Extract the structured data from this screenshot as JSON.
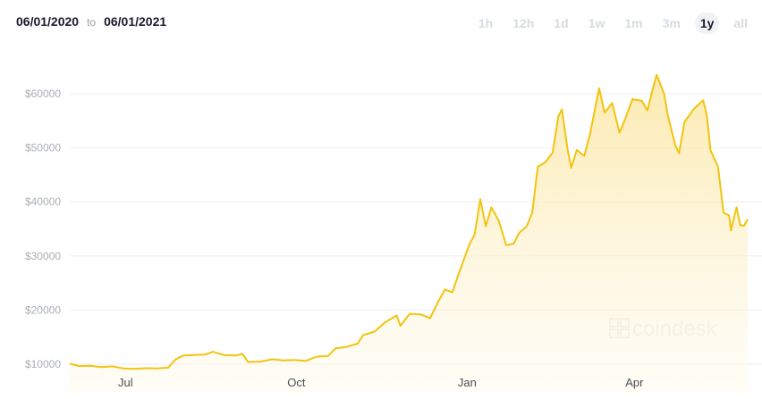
{
  "header": {
    "from_date": "06/01/2020",
    "separator": "to",
    "to_date": "06/01/2021"
  },
  "ranges": [
    {
      "label": "1h",
      "active": false
    },
    {
      "label": "12h",
      "active": false
    },
    {
      "label": "1d",
      "active": false
    },
    {
      "label": "1w",
      "active": false
    },
    {
      "label": "1m",
      "active": false
    },
    {
      "label": "3m",
      "active": false
    },
    {
      "label": "1y",
      "active": true
    },
    {
      "label": "all",
      "active": false
    }
  ],
  "watermark": "coindesk",
  "chart_data": {
    "type": "area",
    "title": "",
    "xlabel": "",
    "ylabel": "",
    "ylim": [
      10000,
      65000
    ],
    "yticks": [
      10000,
      20000,
      30000,
      40000,
      50000,
      60000
    ],
    "ytick_labels": [
      "$10000",
      "$20000",
      "$30000",
      "$40000",
      "$50000",
      "$60000"
    ],
    "xlim": [
      "2020-06-01",
      "2021-06-01"
    ],
    "xticks": [
      {
        "date": "2020-07-01",
        "label": "Jul"
      },
      {
        "date": "2020-10-01",
        "label": "Oct"
      },
      {
        "date": "2021-01-01",
        "label": "Jan"
      },
      {
        "date": "2021-04-01",
        "label": "Apr"
      }
    ],
    "grid": true,
    "colors": {
      "line": "#f2c40f",
      "fill": "#fbe9a6",
      "grid": "#eceef0"
    },
    "series": [
      {
        "points": [
          [
            "2020-06-01",
            10100
          ],
          [
            "2020-06-06",
            9650
          ],
          [
            "2020-06-12",
            9700
          ],
          [
            "2020-06-18",
            9450
          ],
          [
            "2020-06-24",
            9600
          ],
          [
            "2020-06-30",
            9200
          ],
          [
            "2020-07-06",
            9150
          ],
          [
            "2020-07-12",
            9250
          ],
          [
            "2020-07-18",
            9200
          ],
          [
            "2020-07-24",
            9350
          ],
          [
            "2020-07-28",
            10900
          ],
          [
            "2020-08-01",
            11600
          ],
          [
            "2020-08-07",
            11700
          ],
          [
            "2020-08-13",
            11800
          ],
          [
            "2020-08-17",
            12300
          ],
          [
            "2020-08-23",
            11700
          ],
          [
            "2020-08-29",
            11600
          ],
          [
            "2020-09-02",
            11900
          ],
          [
            "2020-09-05",
            10400
          ],
          [
            "2020-09-12",
            10500
          ],
          [
            "2020-09-18",
            10900
          ],
          [
            "2020-09-24",
            10700
          ],
          [
            "2020-09-30",
            10800
          ],
          [
            "2020-10-06",
            10600
          ],
          [
            "2020-10-12",
            11400
          ],
          [
            "2020-10-18",
            11500
          ],
          [
            "2020-10-22",
            12900
          ],
          [
            "2020-10-28",
            13200
          ],
          [
            "2020-11-03",
            13800
          ],
          [
            "2020-11-06",
            15400
          ],
          [
            "2020-11-12",
            16000
          ],
          [
            "2020-11-18",
            17800
          ],
          [
            "2020-11-24",
            19000
          ],
          [
            "2020-11-26",
            17100
          ],
          [
            "2020-12-01",
            19300
          ],
          [
            "2020-12-07",
            19200
          ],
          [
            "2020-12-12",
            18500
          ],
          [
            "2020-12-16",
            21300
          ],
          [
            "2020-12-20",
            23800
          ],
          [
            "2020-12-24",
            23300
          ],
          [
            "2020-12-27",
            26300
          ],
          [
            "2021-01-02",
            32000
          ],
          [
            "2021-01-05",
            34000
          ],
          [
            "2021-01-08",
            40500
          ],
          [
            "2021-01-11",
            35500
          ],
          [
            "2021-01-14",
            39000
          ],
          [
            "2021-01-18",
            36500
          ],
          [
            "2021-01-22",
            32000
          ],
          [
            "2021-01-26",
            32300
          ],
          [
            "2021-01-29",
            34300
          ],
          [
            "2021-02-02",
            35500
          ],
          [
            "2021-02-05",
            38000
          ],
          [
            "2021-02-08",
            46500
          ],
          [
            "2021-02-12",
            47300
          ],
          [
            "2021-02-16",
            49100
          ],
          [
            "2021-02-19",
            55800
          ],
          [
            "2021-02-21",
            57100
          ],
          [
            "2021-02-24",
            49700
          ],
          [
            "2021-02-26",
            46300
          ],
          [
            "2021-03-01",
            49600
          ],
          [
            "2021-03-05",
            48500
          ],
          [
            "2021-03-08",
            52400
          ],
          [
            "2021-03-13",
            61000
          ],
          [
            "2021-03-16",
            56500
          ],
          [
            "2021-03-20",
            58300
          ],
          [
            "2021-03-24",
            52800
          ],
          [
            "2021-03-27",
            55300
          ],
          [
            "2021-03-31",
            59000
          ],
          [
            "2021-04-05",
            58700
          ],
          [
            "2021-04-08",
            56900
          ],
          [
            "2021-04-10",
            59700
          ],
          [
            "2021-04-13",
            63500
          ],
          [
            "2021-04-17",
            60000
          ],
          [
            "2021-04-19",
            56000
          ],
          [
            "2021-04-23",
            50500
          ],
          [
            "2021-04-25",
            49000
          ],
          [
            "2021-04-28",
            54800
          ],
          [
            "2021-05-03",
            57200
          ],
          [
            "2021-05-08",
            58800
          ],
          [
            "2021-05-10",
            56000
          ],
          [
            "2021-05-12",
            49500
          ],
          [
            "2021-05-16",
            46500
          ],
          [
            "2021-05-19",
            38000
          ],
          [
            "2021-05-22",
            37500
          ],
          [
            "2021-05-23",
            34700
          ],
          [
            "2021-05-26",
            39000
          ],
          [
            "2021-05-28",
            35700
          ],
          [
            "2021-05-30",
            35600
          ],
          [
            "2021-06-01",
            36800
          ]
        ]
      }
    ]
  }
}
